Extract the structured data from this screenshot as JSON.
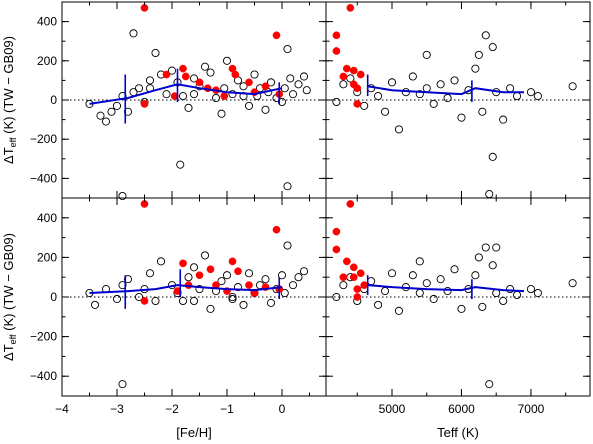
{
  "chart_data": {
    "type": "scatter",
    "ylabel": "ΔTeff (K) (TW − GB09)",
    "ylabel_parts": {
      "delta": "ΔT",
      "sub": "eff",
      "rest": " (K) (TW − GB09)"
    },
    "ylim": [
      -500,
      500
    ],
    "yticks": [
      -400,
      -200,
      0,
      200,
      400
    ],
    "reference_line": {
      "y": 0,
      "style": "dotted"
    },
    "colors": {
      "open_markers": "#000000",
      "filled_markers": "#ff0000",
      "binned_trend": "#0000cc"
    },
    "x_axes": [
      {
        "label": "[Fe/H]",
        "xlim": [
          -4,
          0.8
        ],
        "ticks": [
          -4,
          -3,
          -2,
          -1,
          0
        ]
      },
      {
        "label": "Teff (K)",
        "xlim": [
          4050,
          7850
        ],
        "ticks": [
          5000,
          6000,
          7000
        ]
      }
    ],
    "panels": [
      {
        "id": "top-left",
        "x_axis": 0,
        "open_points": [
          [
            -3.5,
            -20
          ],
          [
            -3.3,
            -80
          ],
          [
            -3.2,
            -110
          ],
          [
            -3.1,
            -60
          ],
          [
            -3.0,
            -30
          ],
          [
            -2.9,
            20
          ],
          [
            -2.8,
            -60
          ],
          [
            -2.7,
            40
          ],
          [
            -2.6,
            60
          ],
          [
            -2.5,
            -10
          ],
          [
            -2.4,
            100
          ],
          [
            -2.3,
            240
          ],
          [
            -2.2,
            130
          ],
          [
            -2.1,
            30
          ],
          [
            -2.0,
            150
          ],
          [
            -1.9,
            90
          ],
          [
            -1.85,
            -330
          ],
          [
            -1.8,
            20
          ],
          [
            -1.7,
            -40
          ],
          [
            -1.6,
            110
          ],
          [
            -1.5,
            70
          ],
          [
            -1.4,
            170
          ],
          [
            -1.3,
            140
          ],
          [
            -1.2,
            10
          ],
          [
            -1.1,
            -70
          ],
          [
            -1.05,
            60
          ],
          [
            -1.0,
            200
          ],
          [
            -0.9,
            30
          ],
          [
            -0.8,
            100
          ],
          [
            -0.7,
            70
          ],
          [
            -0.6,
            -30
          ],
          [
            -0.5,
            130
          ],
          [
            -0.45,
            20
          ],
          [
            -0.4,
            60
          ],
          [
            -0.3,
            -50
          ],
          [
            -0.25,
            40
          ],
          [
            -0.2,
            90
          ],
          [
            -0.1,
            10
          ],
          [
            0.0,
            -10
          ],
          [
            0.05,
            60
          ],
          [
            0.1,
            -440
          ],
          [
            0.1,
            260
          ],
          [
            0.15,
            110
          ],
          [
            0.2,
            30
          ],
          [
            0.3,
            80
          ],
          [
            0.4,
            120
          ],
          [
            0.45,
            50
          ],
          [
            -2.4,
            60
          ],
          [
            -1.6,
            30
          ],
          [
            -0.7,
            20
          ],
          [
            -2.9,
            -490
          ],
          [
            -2.7,
            340
          ]
        ],
        "filled_points": [
          [
            -2.5,
            470
          ],
          [
            -2.5,
            -20
          ],
          [
            -2.1,
            130
          ],
          [
            -1.95,
            20
          ],
          [
            -1.8,
            160
          ],
          [
            -1.75,
            120
          ],
          [
            -1.5,
            90
          ],
          [
            -1.35,
            60
          ],
          [
            -1.2,
            50
          ],
          [
            -1.05,
            20
          ],
          [
            -0.9,
            160
          ],
          [
            -0.85,
            130
          ],
          [
            -0.6,
            90
          ],
          [
            -0.5,
            40
          ],
          [
            -0.3,
            70
          ],
          [
            -0.1,
            330
          ],
          [
            -0.05,
            30
          ]
        ],
        "trend": {
          "points": [
            [
              -3.5,
              -20
            ],
            [
              -2.8,
              10
            ],
            [
              -2.3,
              50
            ],
            [
              -1.9,
              80
            ],
            [
              -1.5,
              60
            ],
            [
              -1.0,
              40
            ],
            [
              -0.5,
              30
            ],
            [
              0.0,
              60
            ]
          ],
          "error_bars": [
            [
              -2.85,
              -120,
              130
            ],
            [
              -1.9,
              -10,
              160
            ],
            [
              -0.05,
              -20,
              90
            ]
          ]
        }
      },
      {
        "id": "top-right",
        "x_axis": 1,
        "open_points": [
          [
            4200,
            -10
          ],
          [
            4300,
            80
          ],
          [
            4400,
            110
          ],
          [
            4500,
            40
          ],
          [
            4600,
            -30
          ],
          [
            4700,
            60
          ],
          [
            4800,
            20
          ],
          [
            4900,
            -60
          ],
          [
            5000,
            90
          ],
          [
            5100,
            -150
          ],
          [
            5200,
            40
          ],
          [
            5300,
            120
          ],
          [
            5400,
            30
          ],
          [
            5500,
            60
          ],
          [
            5600,
            -20
          ],
          [
            5700,
            80
          ],
          [
            5800,
            10
          ],
          [
            5900,
            100
          ],
          [
            6000,
            -90
          ],
          [
            6100,
            50
          ],
          [
            6200,
            160
          ],
          [
            6250,
            230
          ],
          [
            6300,
            -60
          ],
          [
            6350,
            330
          ],
          [
            6400,
            -480
          ],
          [
            6450,
            270
          ],
          [
            6500,
            40
          ],
          [
            6600,
            -100
          ],
          [
            6700,
            60
          ],
          [
            6800,
            20
          ],
          [
            7000,
            40
          ],
          [
            7100,
            20
          ],
          [
            7600,
            70
          ],
          [
            5500,
            230
          ],
          [
            6450,
            -290
          ]
        ],
        "filled_points": [
          [
            4200,
            330
          ],
          [
            4200,
            250
          ],
          [
            4300,
            120
          ],
          [
            4350,
            160
          ],
          [
            4400,
            470
          ],
          [
            4450,
            80
          ],
          [
            4450,
            150
          ],
          [
            4500,
            -20
          ],
          [
            4500,
            60
          ],
          [
            4550,
            130
          ]
        ],
        "trend": {
          "points": [
            [
              4650,
              70
            ],
            [
              5000,
              50
            ],
            [
              5500,
              40
            ],
            [
              6000,
              30
            ],
            [
              6200,
              60
            ],
            [
              6600,
              40
            ],
            [
              6900,
              40
            ]
          ],
          "error_bars": [
            [
              4650,
              20,
              130
            ],
            [
              6150,
              -10,
              100
            ]
          ]
        }
      },
      {
        "id": "bottom-left",
        "x_axis": 0,
        "open_points": [
          [
            -3.5,
            20
          ],
          [
            -3.4,
            -40
          ],
          [
            -3.2,
            40
          ],
          [
            -3.0,
            -10
          ],
          [
            -2.9,
            60
          ],
          [
            -2.8,
            90
          ],
          [
            -2.6,
            0
          ],
          [
            -2.5,
            40
          ],
          [
            -2.4,
            120
          ],
          [
            -2.3,
            -20
          ],
          [
            -2.2,
            180
          ],
          [
            -2.0,
            60
          ],
          [
            -1.9,
            20
          ],
          [
            -1.8,
            -20
          ],
          [
            -1.7,
            100
          ],
          [
            -1.6,
            150
          ],
          [
            -1.5,
            40
          ],
          [
            -1.4,
            210
          ],
          [
            -1.3,
            -60
          ],
          [
            -1.2,
            30
          ],
          [
            -1.1,
            80
          ],
          [
            -1.0,
            110
          ],
          [
            -0.9,
            0
          ],
          [
            -0.8,
            50
          ],
          [
            -0.7,
            -40
          ],
          [
            -0.6,
            120
          ],
          [
            -0.5,
            20
          ],
          [
            -0.4,
            60
          ],
          [
            -0.3,
            90
          ],
          [
            -0.2,
            -30
          ],
          [
            -0.1,
            40
          ],
          [
            0.0,
            110
          ],
          [
            0.05,
            20
          ],
          [
            0.1,
            260
          ],
          [
            0.2,
            60
          ],
          [
            0.3,
            100
          ],
          [
            0.4,
            130
          ],
          [
            -2.9,
            -440
          ],
          [
            -1.6,
            -20
          ],
          [
            -0.9,
            -10
          ]
        ],
        "filled_points": [
          [
            -2.5,
            470
          ],
          [
            -2.5,
            -20
          ],
          [
            -1.9,
            30
          ],
          [
            -1.8,
            170
          ],
          [
            -1.7,
            60
          ],
          [
            -1.5,
            110
          ],
          [
            -1.3,
            140
          ],
          [
            -1.2,
            60
          ],
          [
            -1.0,
            30
          ],
          [
            -0.9,
            180
          ],
          [
            -0.8,
            130
          ],
          [
            -0.6,
            60
          ],
          [
            -0.5,
            20
          ],
          [
            -0.3,
            50
          ],
          [
            -0.1,
            340
          ],
          [
            -0.05,
            40
          ]
        ],
        "trend": {
          "points": [
            [
              -3.5,
              20
            ],
            [
              -2.8,
              30
            ],
            [
              -2.3,
              40
            ],
            [
              -1.9,
              60
            ],
            [
              -1.5,
              50
            ],
            [
              -1.0,
              40
            ],
            [
              -0.5,
              35
            ],
            [
              0.0,
              50
            ]
          ],
          "error_bars": [
            [
              -2.85,
              -60,
              110
            ],
            [
              -1.85,
              0,
              140
            ],
            [
              -0.05,
              -10,
              100
            ]
          ]
        }
      },
      {
        "id": "bottom-right",
        "x_axis": 1,
        "open_points": [
          [
            4200,
            0
          ],
          [
            4300,
            60
          ],
          [
            4400,
            100
          ],
          [
            4500,
            -20
          ],
          [
            4600,
            40
          ],
          [
            4700,
            80
          ],
          [
            4800,
            -40
          ],
          [
            4900,
            30
          ],
          [
            5000,
            120
          ],
          [
            5100,
            -70
          ],
          [
            5200,
            50
          ],
          [
            5300,
            110
          ],
          [
            5400,
            20
          ],
          [
            5500,
            70
          ],
          [
            5600,
            -10
          ],
          [
            5700,
            90
          ],
          [
            5800,
            30
          ],
          [
            5900,
            140
          ],
          [
            6000,
            -60
          ],
          [
            6100,
            40
          ],
          [
            6200,
            110
          ],
          [
            6250,
            200
          ],
          [
            6300,
            -50
          ],
          [
            6350,
            250
          ],
          [
            6400,
            -440
          ],
          [
            6450,
            160
          ],
          [
            6500,
            20
          ],
          [
            6600,
            -20
          ],
          [
            6700,
            40
          ],
          [
            6800,
            10
          ],
          [
            7000,
            40
          ],
          [
            7100,
            20
          ],
          [
            7600,
            70
          ],
          [
            5400,
            180
          ],
          [
            6500,
            250
          ]
        ],
        "filled_points": [
          [
            4200,
            330
          ],
          [
            4200,
            240
          ],
          [
            4300,
            100
          ],
          [
            4350,
            180
          ],
          [
            4400,
            470
          ],
          [
            4450,
            100
          ],
          [
            4450,
            150
          ],
          [
            4500,
            0
          ],
          [
            4500,
            40
          ],
          [
            4550,
            120
          ],
          [
            4600,
            60
          ]
        ],
        "trend": {
          "points": [
            [
              4650,
              60
            ],
            [
              5000,
              50
            ],
            [
              5500,
              40
            ],
            [
              6000,
              35
            ],
            [
              6200,
              50
            ],
            [
              6600,
              35
            ],
            [
              6900,
              30
            ]
          ],
          "error_bars": [
            [
              4650,
              10,
              110
            ],
            [
              6150,
              -10,
              90
            ]
          ]
        }
      }
    ]
  }
}
